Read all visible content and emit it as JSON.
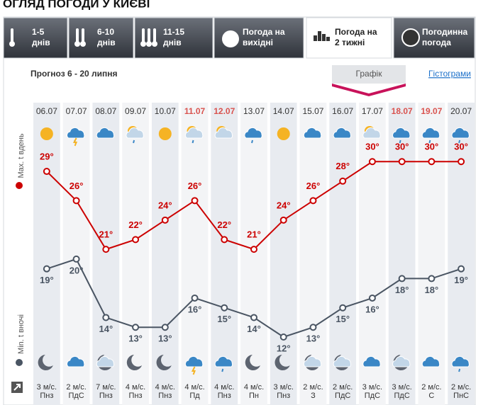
{
  "header": {
    "title": "ОГЛЯД ПОГОДИ У КИЄВІ"
  },
  "tabs": [
    [
      "1-5",
      "днів"
    ],
    [
      "6-10",
      "днів"
    ],
    [
      "11-15",
      "днів"
    ],
    [
      "Погода на",
      "вихідні"
    ],
    [
      "Погода на",
      "2 тижні"
    ],
    [
      "Погодинна",
      "погода"
    ]
  ],
  "subtitle": "Прогноз 6 - 20 липня",
  "views": [
    "Графік",
    "Гістограми"
  ],
  "chart_data": {
    "type": "line",
    "categories": [
      "06.07",
      "07.07",
      "08.07",
      "09.07",
      "10.07",
      "11.07",
      "12.07",
      "13.07",
      "14.07",
      "15.07",
      "16.07",
      "17.07",
      "18.07",
      "19.07",
      "20.07"
    ],
    "category_colors": [
      "#333333",
      "#333333",
      "#333333",
      "#333333",
      "#333333",
      "#d9534f",
      "#d9534f",
      "#333333",
      "#333333",
      "#333333",
      "#333333",
      "#333333",
      "#d9534f",
      "#d9534f",
      "#333333"
    ],
    "series": [
      {
        "name": "Max. t вдень",
        "color": "#cc0000",
        "values": [
          29,
          26,
          21,
          22,
          24,
          26,
          22,
          21,
          24,
          26,
          28,
          30,
          30,
          30,
          30
        ],
        "value_labels": [
          "29°",
          "26°",
          "21°",
          "22°",
          "24°",
          "26°",
          "22°",
          "21°",
          "24°",
          "26°",
          "28°",
          "30°",
          "30°",
          "30°",
          "30°"
        ]
      },
      {
        "name": "Min. t вночі",
        "color": "#4a5563",
        "values": [
          19,
          20,
          14,
          13,
          13,
          16,
          15,
          14,
          12,
          13,
          15,
          16,
          18,
          18,
          19
        ],
        "value_labels": [
          "19°",
          "20°",
          "14°",
          "13°",
          "13°",
          "16°",
          "15°",
          "14°",
          "12°",
          "13°",
          "15°",
          "16°",
          "18°",
          "18°",
          "19°"
        ]
      }
    ],
    "ylim": [
      11,
      32
    ],
    "wind": [
      [
        "3 м/с.",
        "Пнз"
      ],
      [
        "2 м/с.",
        "ПдС"
      ],
      [
        "7 м/с.",
        "Пнз"
      ],
      [
        "4 м/с.",
        "Пнз"
      ],
      [
        "4 м/с.",
        "Пнз"
      ],
      [
        "4 м/с.",
        "Пд"
      ],
      [
        "4 м/с.",
        "Пнз"
      ],
      [
        "4 м/с.",
        "Пн"
      ],
      [
        "3 м/с.",
        "Пнз"
      ],
      [
        "2 м/с.",
        "З"
      ],
      [
        "2 м/с.",
        "ПдС"
      ],
      [
        "3 м/с.",
        "ПдС"
      ],
      [
        "3 м/с.",
        "ПдС"
      ],
      [
        "2 м/с.",
        "С"
      ],
      [
        "2 м/с.",
        "ПнС"
      ]
    ]
  }
}
